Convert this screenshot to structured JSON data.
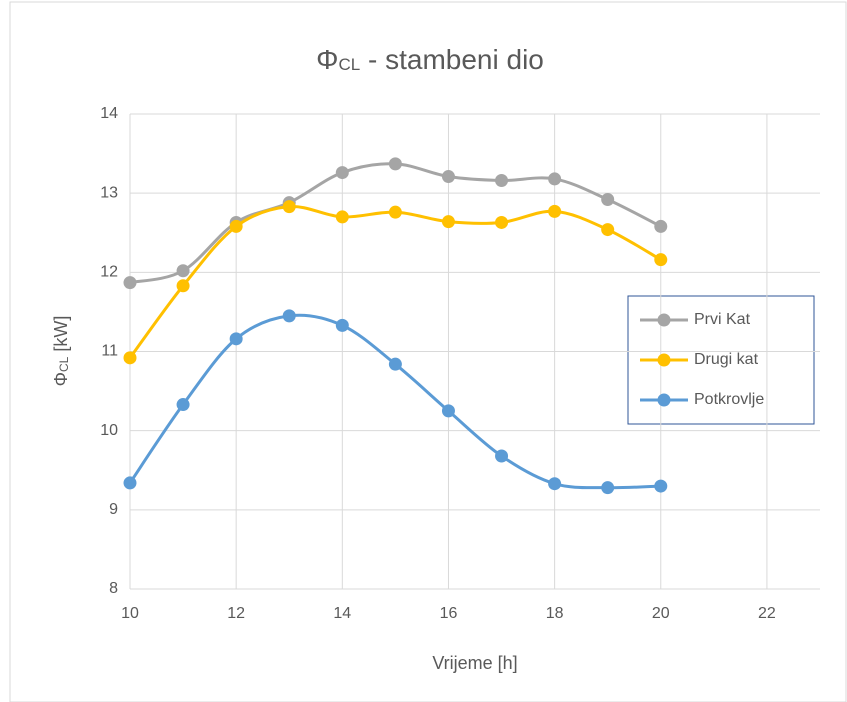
{
  "chart_data": {
    "type": "line",
    "title": {
      "symbol": "Φ",
      "sub": "CL",
      "rest": " - stambeni dio"
    },
    "x_label": "Vrijeme [h]",
    "y_label": {
      "symbol": "Φ",
      "sub": "CL",
      "rest": " [kW]"
    },
    "x": [
      10,
      11,
      12,
      13,
      14,
      15,
      16,
      17,
      18,
      19,
      20
    ],
    "series": [
      {
        "name": "Prvi Kat",
        "color": "#a5a5a5",
        "values": [
          11.87,
          12.02,
          12.63,
          12.88,
          13.26,
          13.37,
          13.21,
          13.16,
          13.18,
          12.92,
          12.58
        ]
      },
      {
        "name": "Drugi kat",
        "color": "#ffc000",
        "values": [
          10.92,
          11.83,
          12.58,
          12.83,
          12.7,
          12.76,
          12.64,
          12.63,
          12.77,
          12.54,
          12.16
        ]
      },
      {
        "name": "Potkrovlje",
        "color": "#5b9bd5",
        "values": [
          9.34,
          10.33,
          11.16,
          11.45,
          11.33,
          10.84,
          10.25,
          9.68,
          9.33,
          9.28,
          9.3
        ]
      }
    ],
    "xlim": [
      10,
      23
    ],
    "xticks": [
      10,
      12,
      14,
      16,
      18,
      20,
      22
    ],
    "ylim": [
      8,
      14
    ],
    "yticks": [
      8,
      9,
      10,
      11,
      12,
      13,
      14
    ],
    "grid": true,
    "smooth": true,
    "legend": "right"
  }
}
